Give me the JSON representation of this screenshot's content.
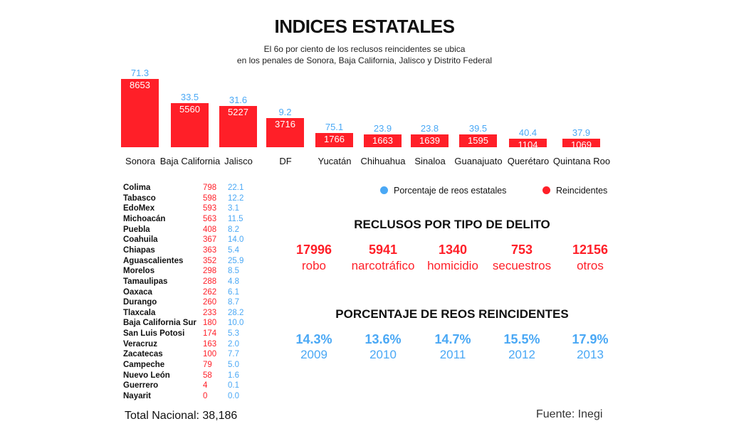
{
  "title": "INDICES ESTATALES",
  "subtitle": [
    "El 6o por ciento de los reclusos reincidentes se ubica",
    "en los penales de Sonora, Baja California, Jalisco y Distrito Federal"
  ],
  "colors": {
    "reincidentes": "#ff1f28",
    "porcentaje": "#4aa8f5"
  },
  "chart_data": {
    "type": "bar",
    "title": "INDICES ESTATALES",
    "categories": [
      "Sonora",
      "Baja California",
      "Jalisco",
      "DF",
      "Yucatán",
      "Chihuahua",
      "Sinaloa",
      "Guanajuato",
      "Querétaro",
      "Quintana Roo"
    ],
    "series": [
      {
        "name": "Reincidentes",
        "values": [
          8653,
          5560,
          5227,
          3716,
          1766,
          1663,
          1639,
          1595,
          1104,
          1069
        ]
      },
      {
        "name": "Porcentaje de reos estatales",
        "values": [
          "71.3",
          "33.5",
          "31.6",
          "9.2",
          "75.1",
          "23.9",
          "23.8",
          "39.5",
          "40.4",
          "37.9"
        ]
      }
    ],
    "legend": "bottom-right",
    "grid": false
  },
  "legend": {
    "blue": "Porcentaje de reos estatales",
    "red": "Reincidentes"
  },
  "states_table": [
    [
      "Colima",
      "798",
      "22.1"
    ],
    [
      "Tabasco",
      "598",
      "12.2"
    ],
    [
      "EdoMex",
      "593",
      "3.1"
    ],
    [
      "Michoacán",
      "563",
      "11.5"
    ],
    [
      "Puebla",
      "408",
      "8.2"
    ],
    [
      "Coahuila",
      "367",
      "14.0"
    ],
    [
      "Chiapas",
      "363",
      "5.4"
    ],
    [
      "Aguascalientes",
      "352",
      "25.9"
    ],
    [
      "Morelos",
      "298",
      "8.5"
    ],
    [
      "Tamaulipas",
      "288",
      "4.8"
    ],
    [
      "Oaxaca",
      "262",
      "6.1"
    ],
    [
      "Durango",
      "260",
      "8.7"
    ],
    [
      "Tlaxcala",
      "233",
      "28.2"
    ],
    [
      "Baja California Sur",
      "180",
      "10.0"
    ],
    [
      "San Luis Potosi",
      "174",
      "5.3"
    ],
    [
      "Veracruz",
      "163",
      "2.0"
    ],
    [
      "Zacatecas",
      "100",
      "7.7"
    ],
    [
      "Campeche",
      "79",
      "5.0"
    ],
    [
      "Nuevo León",
      "58",
      "1.6"
    ],
    [
      "Guerrero",
      "4",
      "0.1"
    ],
    [
      "Nayarit",
      "0",
      "0.0"
    ]
  ],
  "total": "Total Nacional: 38,186",
  "crimes": {
    "title": "RECLUSOS POR TIPO DE DELITO",
    "items": [
      {
        "value": "17996",
        "label": "robo"
      },
      {
        "value": "5941",
        "label": "narcotráfico"
      },
      {
        "value": "1340",
        "label": "homicidio"
      },
      {
        "value": "753",
        "label": "secuestros"
      },
      {
        "value": "12156",
        "label": "otros"
      }
    ]
  },
  "recidivism": {
    "title": "PORCENTAJE DE REOS REINCIDENTES",
    "items": [
      {
        "value": "14.3%",
        "year": "2009"
      },
      {
        "value": "13.6%",
        "year": "2010"
      },
      {
        "value": "14.7%",
        "year": "2011"
      },
      {
        "value": "15.5%",
        "year": "2012"
      },
      {
        "value": "17.9%",
        "year": "2013"
      }
    ]
  },
  "source": "Fuente: Inegi"
}
